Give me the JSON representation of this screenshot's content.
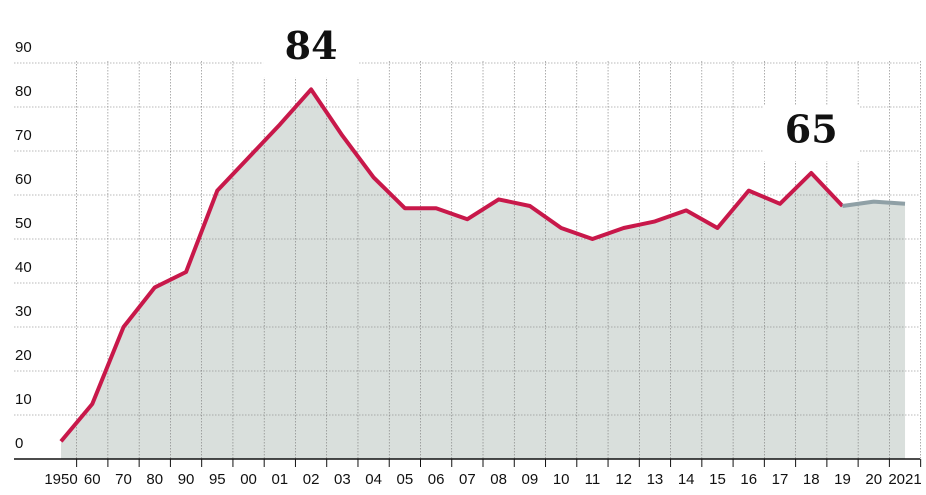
{
  "chart_data": {
    "type": "line",
    "categories": [
      "1950",
      "60",
      "70",
      "80",
      "90",
      "95",
      "00",
      "01",
      "02",
      "03",
      "04",
      "05",
      "06",
      "07",
      "08",
      "09",
      "10",
      "11",
      "12",
      "13",
      "14",
      "15",
      "16",
      "17",
      "18",
      "19",
      "20",
      "2021"
    ],
    "series": [
      {
        "color": "#c8184a",
        "values": [
          4,
          12.5,
          30,
          39,
          42.5,
          61,
          68.5,
          76,
          84,
          73.5,
          64,
          57,
          57,
          54.5,
          59,
          57.5,
          52.5,
          50,
          52.5,
          54,
          56.5,
          52.5,
          61,
          58,
          65,
          57.5,
          null,
          null
        ],
        "value_labels": [
          null,
          null,
          null,
          null,
          null,
          null,
          null,
          null,
          "84",
          null,
          null,
          null,
          null,
          null,
          null,
          null,
          null,
          null,
          null,
          null,
          null,
          null,
          null,
          null,
          "65",
          null,
          null,
          null
        ]
      },
      {
        "color": "#8fa0a6",
        "values": [
          null,
          null,
          null,
          null,
          null,
          null,
          null,
          null,
          null,
          null,
          null,
          null,
          null,
          null,
          null,
          null,
          null,
          null,
          null,
          null,
          null,
          null,
          null,
          null,
          null,
          57.5,
          58.5,
          58
        ]
      }
    ],
    "area_color": "#d9dfdc",
    "ylim": [
      0,
      90
    ],
    "yticks": [
      0,
      10,
      20,
      30,
      40,
      50,
      60,
      70,
      80,
      90
    ],
    "grid": true
  }
}
